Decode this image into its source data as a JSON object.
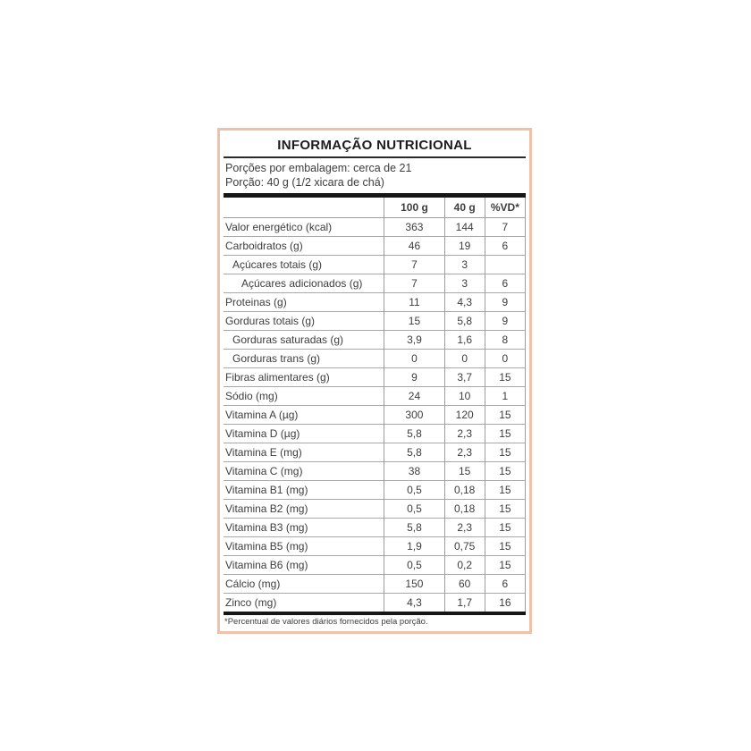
{
  "panel": {
    "title": "INFORMAÇÃO NUTRICIONAL",
    "servings_line1": "Porções por embalagem: cerca de 21",
    "servings_line2": "Porção: 40 g (1/2 xicara de chá)",
    "footnote": "*Percentual de valores diários fornecidos pela porção."
  },
  "colors": {
    "panel_border": "#eec2a8",
    "bar": "#161616",
    "row_line": "#a8a8a8",
    "text": "#3d3d3d"
  },
  "table": {
    "columns": [
      "",
      "100 g",
      "40 g",
      "%VD*"
    ],
    "rows": [
      {
        "label": "Valor energético (kcal)",
        "indent": 0,
        "v100": "363",
        "v40": "144",
        "vd": "7"
      },
      {
        "label": "Carboidratos (g)",
        "indent": 0,
        "v100": "46",
        "v40": "19",
        "vd": "6"
      },
      {
        "label": "Açúcares totais (g)",
        "indent": 1,
        "v100": "7",
        "v40": "3",
        "vd": ""
      },
      {
        "label": "Açúcares adicionados (g)",
        "indent": 2,
        "v100": "7",
        "v40": "3",
        "vd": "6"
      },
      {
        "label": "Proteinas (g)",
        "indent": 0,
        "v100": "11",
        "v40": "4,3",
        "vd": "9"
      },
      {
        "label": "Gorduras totais (g)",
        "indent": 0,
        "v100": "15",
        "v40": "5,8",
        "vd": "9"
      },
      {
        "label": "Gorduras saturadas (g)",
        "indent": 1,
        "v100": "3,9",
        "v40": "1,6",
        "vd": "8"
      },
      {
        "label": "Gorduras trans (g)",
        "indent": 1,
        "v100": "0",
        "v40": "0",
        "vd": "0"
      },
      {
        "label": "Fibras alimentares (g)",
        "indent": 0,
        "v100": "9",
        "v40": "3,7",
        "vd": "15"
      },
      {
        "label": "Sódio (mg)",
        "indent": 0,
        "v100": "24",
        "v40": "10",
        "vd": "1"
      },
      {
        "label": "Vitamina A (µg)",
        "indent": 0,
        "v100": "300",
        "v40": "120",
        "vd": "15"
      },
      {
        "label": "Vitamina D (µg)",
        "indent": 0,
        "v100": "5,8",
        "v40": "2,3",
        "vd": "15"
      },
      {
        "label": "Vitamina E (mg)",
        "indent": 0,
        "v100": "5,8",
        "v40": "2,3",
        "vd": "15"
      },
      {
        "label": "Vitamina C (mg)",
        "indent": 0,
        "v100": "38",
        "v40": "15",
        "vd": "15"
      },
      {
        "label": "Vitamina B1 (mg)",
        "indent": 0,
        "v100": "0,5",
        "v40": "0,18",
        "vd": "15"
      },
      {
        "label": "Vitamina B2 (mg)",
        "indent": 0,
        "v100": "0,5",
        "v40": "0,18",
        "vd": "15"
      },
      {
        "label": "Vitamina B3 (mg)",
        "indent": 0,
        "v100": "5,8",
        "v40": "2,3",
        "vd": "15"
      },
      {
        "label": "Vitamina B5 (mg)",
        "indent": 0,
        "v100": "1,9",
        "v40": "0,75",
        "vd": "15"
      },
      {
        "label": "Vitamina B6 (mg)",
        "indent": 0,
        "v100": "0,5",
        "v40": "0,2",
        "vd": "15"
      },
      {
        "label": "Cálcio (mg)",
        "indent": 0,
        "v100": "150",
        "v40": "60",
        "vd": "6"
      },
      {
        "label": "Zinco (mg)",
        "indent": 0,
        "v100": "4,3",
        "v40": "1,7",
        "vd": "16"
      }
    ]
  }
}
